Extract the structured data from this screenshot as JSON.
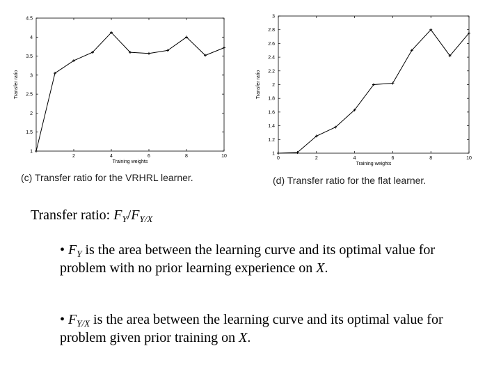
{
  "chart_data": [
    {
      "type": "line",
      "title": "",
      "xlabel": "Training weights",
      "ylabel": "Transfer ratio",
      "xlim": [
        0,
        10
      ],
      "ylim": [
        1,
        4.5
      ],
      "xticks": [
        "2",
        "4",
        "6",
        "8",
        "10"
      ],
      "yticks": [
        "1",
        "1.5",
        "2",
        "2.5",
        "3",
        "3.5",
        "4",
        "4.5"
      ],
      "x": [
        0,
        1,
        2,
        3,
        4,
        5,
        6,
        7,
        8,
        9,
        10
      ],
      "values": [
        1.0,
        3.05,
        3.38,
        3.6,
        4.12,
        3.6,
        3.57,
        3.65,
        4.0,
        3.52,
        3.72
      ],
      "color": "#000000"
    },
    {
      "type": "line",
      "title": "",
      "xlabel": "Training weights",
      "ylabel": "Transfer ratio",
      "xlim": [
        0,
        10
      ],
      "ylim": [
        1,
        3
      ],
      "xticks": [
        "0",
        "2",
        "4",
        "6",
        "8",
        "10"
      ],
      "yticks": [
        "1",
        "1.2",
        "1.4",
        "1.6",
        "1.8",
        "2",
        "2.2",
        "2.4",
        "2.6",
        "2.8",
        "3"
      ],
      "x": [
        0,
        1,
        2,
        3,
        4,
        5,
        6,
        7,
        8,
        9,
        10
      ],
      "values": [
        1.0,
        1.01,
        1.25,
        1.38,
        1.63,
        2.0,
        2.02,
        2.5,
        2.8,
        2.42,
        2.75
      ],
      "color": "#000000"
    }
  ],
  "captions": {
    "left": "(c) Transfer ratio for the VRHRL learner.",
    "right": "(d) Transfer ratio for the flat learner."
  },
  "text": {
    "ratio_label": "Transfer ratio: ",
    "ratio_f1": "F",
    "ratio_sub1": "Y",
    "ratio_slash": "/",
    "ratio_f2": "F",
    "ratio_sub2": "Y/X",
    "b1_bullet": "• ",
    "b1_f": "F",
    "b1_sub": "Y",
    "b1_text": " is the area between the learning curve and its optimal value for problem with no prior learning experience on ",
    "b1_x": "X",
    "b1_end": ".",
    "b2_bullet": "• ",
    "b2_f": "F",
    "b2_sub": "Y/X",
    "b2_text": " is the area between the learning curve and its optimal value for problem given prior training on ",
    "b2_x": "X",
    "b2_end": "."
  }
}
